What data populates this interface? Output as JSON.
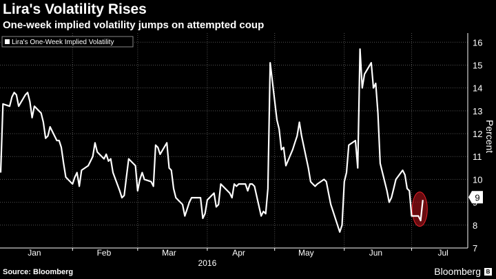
{
  "header": {
    "title": "Lira's Volatility Rises",
    "subtitle": "One-week implied volatility jumps on attempted coup"
  },
  "footer": {
    "source": "Source: Bloomberg",
    "brand": "Bloomberg"
  },
  "colors": {
    "background": "#000000",
    "line": "#ffffff",
    "grid": "#555555",
    "highlight": "#c0141c"
  },
  "chart_data": {
    "type": "line",
    "title": "Lira's Volatility Rises",
    "subtitle": "One-week implied volatility jumps on attempted coup",
    "xlabel": "2016",
    "ylabel": "Percent",
    "ylim": [
      7,
      16.4
    ],
    "yticks": [
      7,
      8,
      9,
      10,
      11,
      12,
      13,
      14,
      15,
      16
    ],
    "x_tick_labels": [
      "Jan",
      "Feb",
      "Mar",
      "Apr",
      "May",
      "Jun",
      "Jul"
    ],
    "year_label": "2016",
    "grid": true,
    "legend_placement": "top-left",
    "last_value_label": "9",
    "series": [
      {
        "name": "Lira's One-Week Implied Volatility",
        "x_start": "2015-12-31",
        "x_unit": "business days",
        "values": [
          10.3,
          13.3,
          13.2,
          13.6,
          13.8,
          13.7,
          13.2,
          13.7,
          13.8,
          13.4,
          12.7,
          13.2,
          12.9,
          12.5,
          11.8,
          11.9,
          12.3,
          11.7,
          11.7,
          11.4,
          10.7,
          10.1,
          9.8,
          10.1,
          10.3,
          9.7,
          10.4,
          10.6,
          10.8,
          11.0,
          11.6,
          11.2,
          10.9,
          11.1,
          10.8,
          10.9,
          10.3,
          9.5,
          9.2,
          9.3,
          10.1,
          10.9,
          10.6,
          9.5,
          10.0,
          10.3,
          10.0,
          9.9,
          9.7,
          11.5,
          11.4,
          11.1,
          11.6,
          10.5,
          10.4,
          9.6,
          9.2,
          8.9,
          8.4,
          8.7,
          9.0,
          9.2,
          9.2,
          9.2,
          8.3,
          8.5,
          9.1,
          9.4,
          8.8,
          8.9,
          9.8,
          9.7,
          9.4,
          9.2,
          9.8,
          9.7,
          9.8,
          9.8,
          9.5,
          9.8,
          9.8,
          9.7,
          8.4,
          8.6,
          8.5,
          9.6,
          15.1,
          12.6,
          12.2,
          11.3,
          11.4,
          10.6,
          11.3,
          11.6,
          11.9,
          12.5,
          11.9,
          10.5,
          9.9,
          9.8,
          9.7,
          9.8,
          10.0,
          9.9,
          9.4,
          8.9,
          8.6,
          7.7,
          8.0,
          9.9,
          10.3,
          11.5,
          11.7,
          10.5,
          15.7,
          14.0,
          14.6,
          15.1,
          14.0,
          14.2,
          12.9,
          10.7,
          9.5,
          9.0,
          9.2,
          9.6,
          10.0,
          10.4,
          10.2,
          9.6,
          9.5,
          8.4,
          8.4,
          8.2,
          9.1
        ]
      }
    ]
  }
}
